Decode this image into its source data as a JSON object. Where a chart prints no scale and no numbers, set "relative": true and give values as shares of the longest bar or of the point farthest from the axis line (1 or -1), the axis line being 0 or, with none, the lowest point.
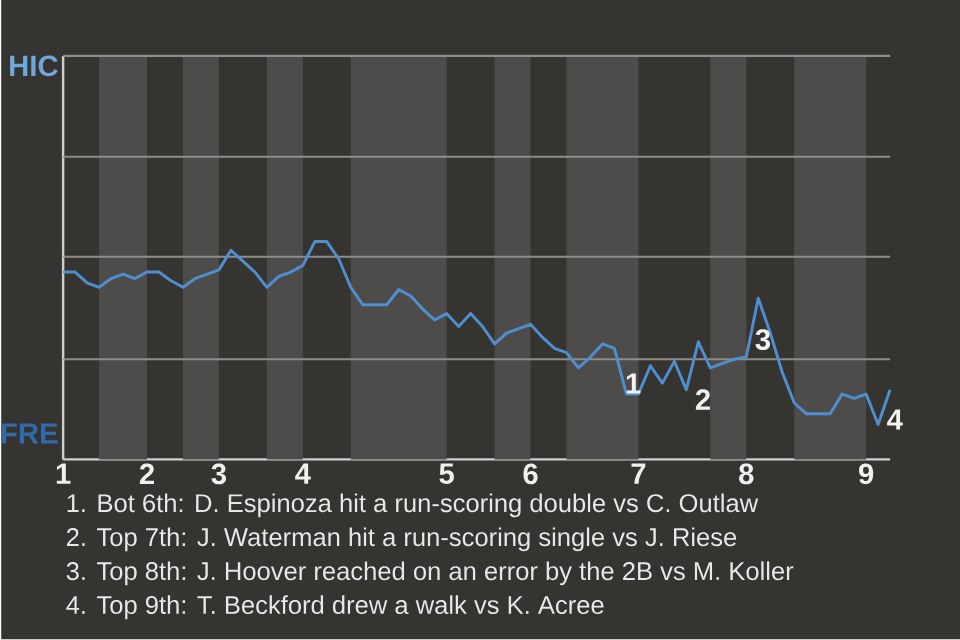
{
  "chart_data": {
    "type": "line",
    "relative": true,
    "ref_lines": [
      {
        "axis": "y",
        "value": 0.46,
        "color": "#8f8d8b"
      },
      {
        "axis": "y",
        "value": 0.93,
        "color": "#8f8d8b"
      }
    ],
    "categories": [
      "1",
      null,
      null,
      null,
      null,
      null,
      null,
      "2",
      null,
      null,
      null,
      null,
      null,
      "3",
      null,
      null,
      null,
      null,
      null,
      null,
      "4",
      null,
      null,
      null,
      null,
      null,
      null,
      null,
      null,
      null,
      null,
      null,
      "5",
      null,
      null,
      null,
      null,
      null,
      null,
      "6",
      null,
      null,
      null,
      null,
      null,
      null,
      null,
      null,
      "7",
      null,
      null,
      null,
      null,
      null,
      null,
      null,
      null,
      "8",
      null,
      null,
      null,
      null,
      null,
      null,
      null,
      null,
      null,
      "9",
      null,
      null
    ],
    "series": [
      {
        "color": "#4d8fd0",
        "values": [
          0.86,
          0.86,
          0.81,
          0.79,
          0.83,
          0.85,
          0.83,
          0.86,
          0.86,
          0.82,
          0.79,
          0.83,
          0.85,
          0.87,
          0.96,
          0.91,
          0.86,
          0.79,
          0.84,
          0.86,
          0.89,
          1,
          1,
          0.92,
          0.79,
          0.71,
          0.71,
          0.71,
          0.78,
          0.75,
          0.69,
          0.64,
          0.67,
          0.61,
          0.67,
          0.61,
          0.53,
          0.58,
          0.6,
          0.62,
          0.56,
          0.51,
          0.49,
          0.42,
          0.47,
          0.53,
          0.51,
          0.3,
          0.3,
          0.43,
          0.35,
          0.45,
          0.32,
          0.54,
          0.42,
          0.44,
          0.46,
          0.47,
          0.74,
          0.58,
          0.4,
          0.26,
          0.21,
          0.21,
          0.21,
          0.3,
          0.28,
          0.3,
          0.16,
          0.32
        ]
      }
    ],
    "annotations": [
      "HIC",
      "FRE",
      "1",
      "2",
      "3",
      "4",
      "1. Bot 6th: D. Espinoza hit a run-scoring double vs C. Outlaw",
      "2. Top 7th: J. Waterman hit a run-scoring single vs J. Riese",
      "3. Top 8th: J. Hoover reached on an error by the 2B vs M. Koller",
      "4. Top 9th: T. Beckford drew a walk vs K. Acree"
    ]
  }
}
